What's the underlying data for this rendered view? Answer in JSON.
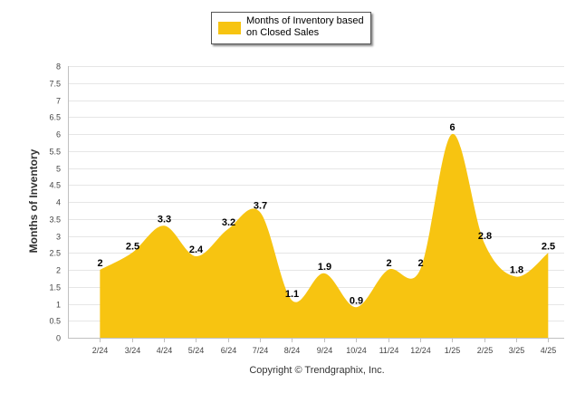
{
  "chart_data": {
    "type": "area",
    "series_name": "Months of Inventory based on Closed Sales",
    "categories": [
      "2/24",
      "3/24",
      "4/24",
      "5/24",
      "6/24",
      "7/24",
      "8/24",
      "9/24",
      "10/24",
      "11/24",
      "12/24",
      "1/25",
      "2/25",
      "3/25",
      "4/25"
    ],
    "values": [
      2,
      2.5,
      3.3,
      2.4,
      3.2,
      3.7,
      1.1,
      1.9,
      0.9,
      2,
      2,
      6,
      2.8,
      1.8,
      2.5
    ],
    "ylabel": "Months of Inventory",
    "ylim": [
      0,
      8
    ],
    "yticks": [
      "0",
      "0.5",
      "1",
      "1.5",
      "2",
      "2.5",
      "3",
      "3.5",
      "4",
      "4.5",
      "5",
      "5.5",
      "6",
      "6.5",
      "7",
      "7.5",
      "8"
    ],
    "grid": true,
    "legend": "top-center",
    "color": "#f7c411"
  },
  "copyright": "Copyright © Trendgraphix, Inc."
}
